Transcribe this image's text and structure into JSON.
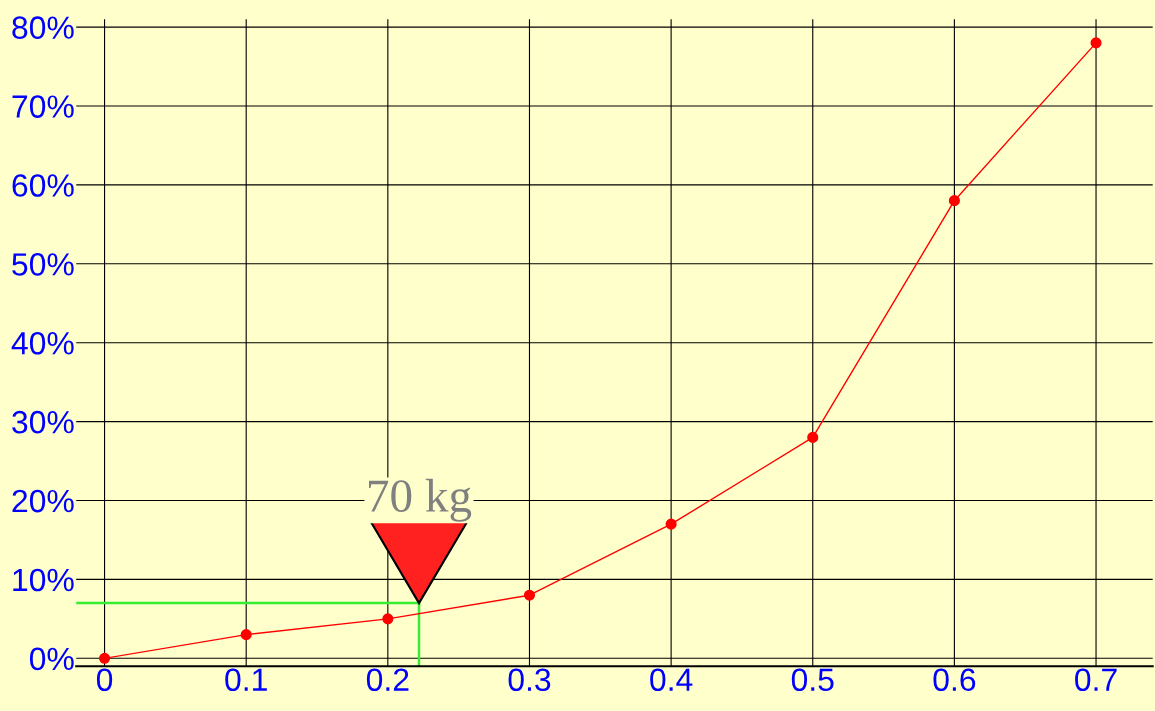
{
  "chart_data": {
    "type": "line",
    "x": [
      0,
      0.1,
      0.2,
      0.3,
      0.4,
      0.5,
      0.6,
      0.7
    ],
    "series": [
      {
        "color": "#ff0000",
        "values": [
          0,
          3,
          5,
          8,
          17,
          28,
          58,
          78
        ],
        "marker": "circle"
      }
    ],
    "ref_lines": [
      {
        "axis": "y",
        "value": 7,
        "color": "#33ee33"
      },
      {
        "axis": "x",
        "value": 0.222,
        "color": "#33ee33"
      }
    ],
    "annotations": [
      {
        "text": "70 kg",
        "x": 0.222,
        "y": 7
      }
    ],
    "xlim": [
      -0.02,
      0.74
    ],
    "ylim": [
      -1,
      81
    ],
    "xticks": [
      0,
      0.1,
      0.2,
      0.3,
      0.4,
      0.5,
      0.6,
      0.7
    ],
    "yticks": [
      {
        "value": 0,
        "label": "0%"
      },
      {
        "value": 10,
        "label": "10%"
      },
      {
        "value": 20,
        "label": "20%"
      },
      {
        "value": 30,
        "label": "30%"
      },
      {
        "value": 40,
        "label": "40%"
      },
      {
        "value": 50,
        "label": "50%"
      },
      {
        "value": 60,
        "label": "60%"
      },
      {
        "value": 70,
        "label": "70%"
      },
      {
        "value": 80,
        "label": "80%"
      }
    ],
    "grid": true
  }
}
